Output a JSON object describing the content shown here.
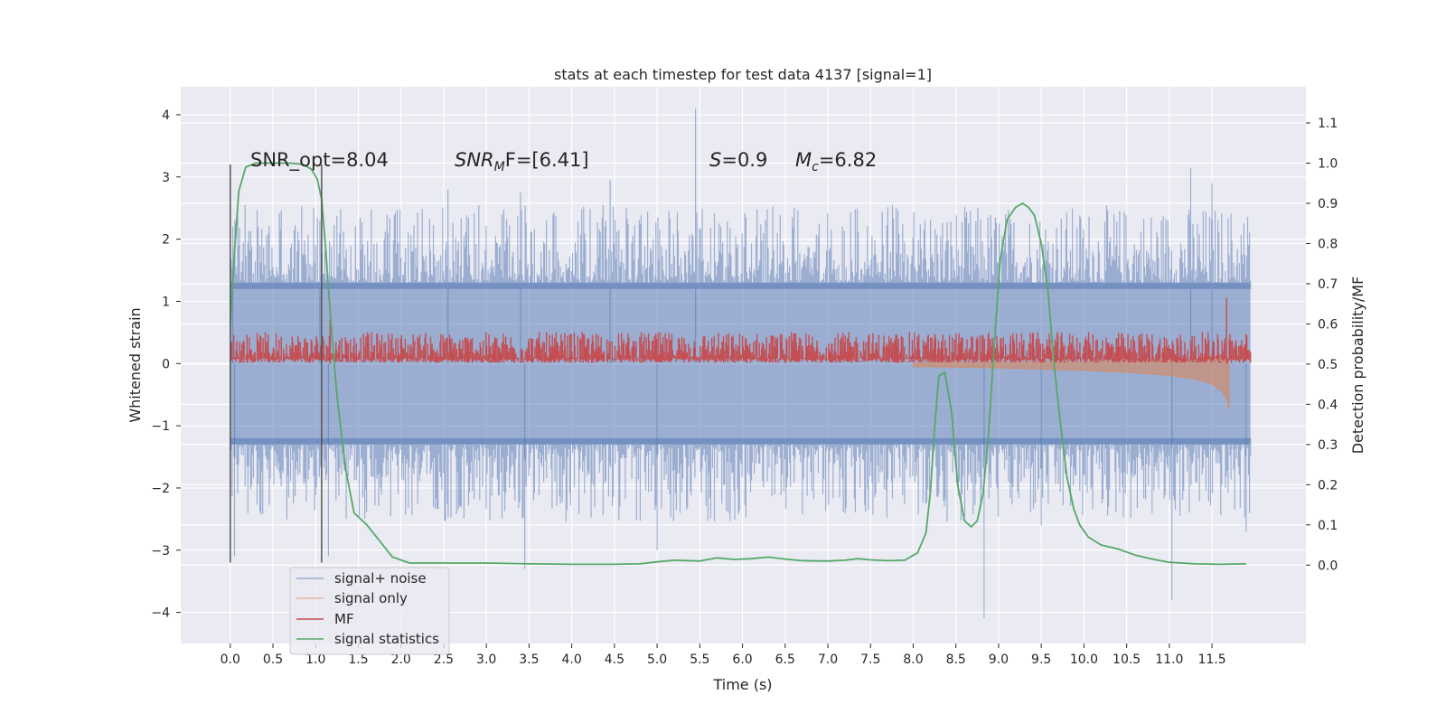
{
  "chart_data": {
    "type": "line",
    "title": "stats at each timestep for test data 4137 [signal=1]",
    "xlabel": "Time (s)",
    "ylabel_left": "Whitened strain",
    "ylabel_right": "Detection probability/MF",
    "xlim": [
      -0.58,
      12.6
    ],
    "ylim_left": [
      -4.5,
      4.45
    ],
    "ylim_right": [
      -0.195,
      1.19
    ],
    "x_ticks": [
      0.0,
      0.5,
      1.0,
      1.5,
      2.0,
      2.5,
      3.0,
      3.5,
      4.0,
      4.5,
      5.0,
      5.5,
      6.0,
      6.5,
      7.0,
      7.5,
      8.0,
      8.5,
      9.0,
      9.5,
      10.0,
      10.5,
      11.0,
      11.5
    ],
    "x_tick_labels": [
      "0.0",
      "0.5",
      "1.0",
      "1.5",
      "2.0",
      "2.5",
      "3.0",
      "3.5",
      "4.0",
      "4.5",
      "5.0",
      "5.5",
      "6.0",
      "6.5",
      "7.0",
      "7.5",
      "8.0",
      "8.5",
      "9.0",
      "9.5",
      "10.0",
      "10.5",
      "11.0",
      "11.5"
    ],
    "y_left_ticks": [
      -4,
      -3,
      -2,
      -1,
      0,
      1,
      2,
      3,
      4
    ],
    "y_left_tick_labels": [
      "−4",
      "−3",
      "−2",
      "−1",
      "0",
      "1",
      "2",
      "3",
      "4"
    ],
    "y_right_ticks": [
      0.0,
      0.1,
      0.2,
      0.3,
      0.4,
      0.5,
      0.6,
      0.7,
      0.8,
      0.9,
      1.0,
      1.1
    ],
    "y_right_tick_labels": [
      "0.0",
      "0.1",
      "0.2",
      "0.3",
      "0.4",
      "0.5",
      "0.6",
      "0.7",
      "0.8",
      "0.9",
      "1.0",
      "1.1"
    ],
    "grid": true,
    "legend_position": "lower-left",
    "annotations": {
      "snr_opt": "SNR_opt=8.04",
      "snr_mf_prefix": "SNR",
      "snr_mf_sub": "M",
      "snr_mf_suffix": "F=[6.41]",
      "s_prefix": "S",
      "s_suffix": "=0.9",
      "mc_prefix": "M",
      "mc_sub": "c",
      "mc_suffix": "=6.82"
    },
    "vertical_lines": [
      {
        "x": 0.0,
        "y1": -3.2,
        "y2": 3.2
      },
      {
        "x": 1.07,
        "y1": -3.2,
        "y2": 3.2
      }
    ],
    "series": [
      {
        "name": "signal+ noise",
        "axis": "left",
        "color": "#4c72b0",
        "x_range": [
          0.0,
          11.95
        ],
        "y_extent": [
          -4.1,
          4.1
        ],
        "y_extent_inner": [
          -1.3,
          1.3
        ],
        "spikes": [
          {
            "x": 5.45,
            "y": 4.1
          },
          {
            "x": 4.45,
            "y": 2.95
          },
          {
            "x": 11.25,
            "y": 3.15
          },
          {
            "x": 11.5,
            "y": 2.9
          },
          {
            "x": 2.55,
            "y": 2.8
          },
          {
            "x": 3.4,
            "y": 2.75
          },
          {
            "x": 0.03,
            "y": 2.2
          },
          {
            "x": 1.05,
            "y": 2.3
          },
          {
            "x": 8.83,
            "y": -4.1
          },
          {
            "x": 11.03,
            "y": -3.8
          },
          {
            "x": 3.45,
            "y": -3.3
          },
          {
            "x": 0.05,
            "y": -3.1
          },
          {
            "x": 5.0,
            "y": -3.0
          },
          {
            "x": 1.15,
            "y": -3.1
          },
          {
            "x": 11.9,
            "y": -2.7
          },
          {
            "x": 9.5,
            "y": -2.6
          }
        ]
      },
      {
        "name": "signal only",
        "axis": "left",
        "color": "#dd8452",
        "x": [
          8.0,
          8.5,
          9.0,
          9.5,
          10.0,
          10.5,
          11.0,
          11.3,
          11.5,
          11.62,
          11.68,
          11.7
        ],
        "y_upper": [
          0.01,
          0.02,
          0.02,
          0.03,
          0.03,
          0.04,
          0.05,
          0.07,
          0.1,
          0.12,
          0.1,
          0.0
        ],
        "y_lower": [
          -0.05,
          -0.06,
          -0.07,
          -0.09,
          -0.11,
          -0.14,
          -0.19,
          -0.25,
          -0.33,
          -0.45,
          -0.6,
          -0.75
        ]
      },
      {
        "name": "MF",
        "axis": "right",
        "color": "#c44e52",
        "x_range": [
          0.0,
          11.95
        ],
        "y_range": [
          0.5,
          0.58
        ],
        "spikes": [
          {
            "x": 11.67,
            "y": 0.665
          },
          {
            "x": 1.17,
            "y": 0.61
          }
        ]
      },
      {
        "name": "signal statistics",
        "axis": "right",
        "color": "#55a868",
        "x": [
          0.0,
          0.05,
          0.1,
          0.18,
          0.3,
          0.5,
          0.7,
          0.85,
          0.95,
          1.02,
          1.07,
          1.12,
          1.18,
          1.25,
          1.35,
          1.45,
          1.6,
          1.75,
          1.9,
          2.1,
          2.5,
          3.0,
          3.5,
          4.0,
          4.5,
          4.8,
          5.0,
          5.2,
          5.5,
          5.7,
          5.9,
          6.1,
          6.3,
          6.5,
          6.7,
          7.0,
          7.2,
          7.35,
          7.5,
          7.7,
          7.9,
          8.05,
          8.15,
          8.2,
          8.25,
          8.3,
          8.37,
          8.45,
          8.52,
          8.6,
          8.68,
          8.75,
          8.82,
          8.88,
          8.95,
          9.02,
          9.1,
          9.2,
          9.28,
          9.35,
          9.42,
          9.5,
          9.58,
          9.65,
          9.72,
          9.8,
          9.88,
          9.95,
          10.05,
          10.2,
          10.4,
          10.6,
          10.8,
          11.0,
          11.3,
          11.6,
          11.9
        ],
        "y": [
          0.6,
          0.78,
          0.93,
          0.99,
          1.0,
          1.0,
          1.0,
          0.997,
          0.985,
          0.96,
          0.91,
          0.78,
          0.6,
          0.42,
          0.24,
          0.13,
          0.1,
          0.06,
          0.02,
          0.005,
          0.005,
          0.005,
          0.003,
          0.002,
          0.002,
          0.003,
          0.008,
          0.012,
          0.01,
          0.018,
          0.014,
          0.016,
          0.02,
          0.015,
          0.011,
          0.01,
          0.012,
          0.016,
          0.013,
          0.011,
          0.012,
          0.03,
          0.08,
          0.18,
          0.34,
          0.47,
          0.48,
          0.38,
          0.2,
          0.11,
          0.095,
          0.11,
          0.18,
          0.32,
          0.55,
          0.76,
          0.86,
          0.89,
          0.9,
          0.89,
          0.87,
          0.8,
          0.68,
          0.5,
          0.36,
          0.22,
          0.14,
          0.1,
          0.07,
          0.05,
          0.04,
          0.025,
          0.015,
          0.007,
          0.003,
          0.002,
          0.003
        ]
      }
    ]
  }
}
